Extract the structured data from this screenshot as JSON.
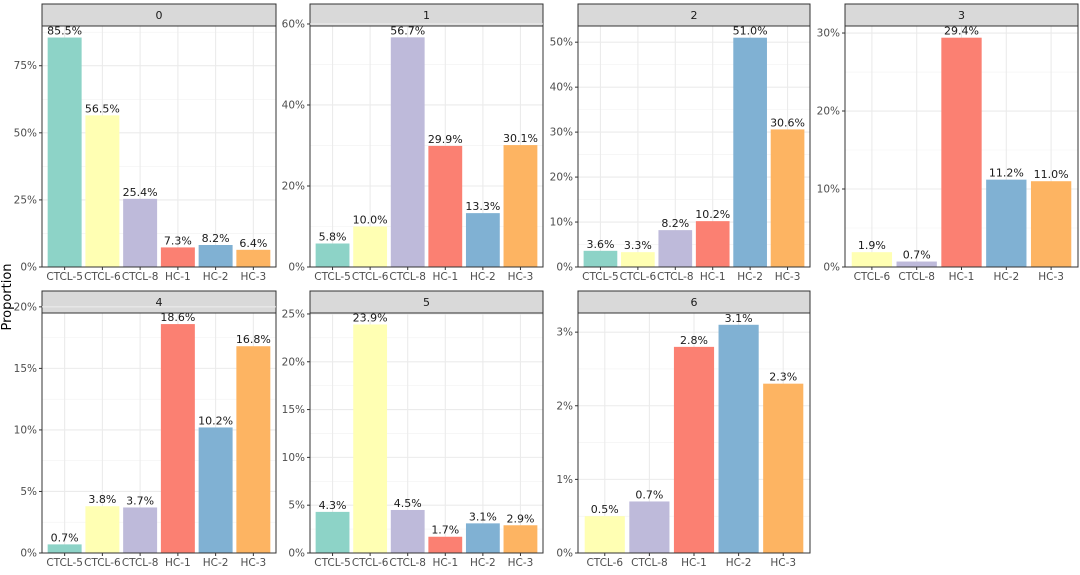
{
  "chart_data": {
    "type": "bar",
    "ylabel": "Proportion",
    "colors": {
      "CTCL-5": "#8DD3C7",
      "CTCL-6": "#FFFFB3",
      "CTCL-8": "#BEBADA",
      "HC-1": "#FB8072",
      "HC-2": "#80B1D3",
      "HC-3": "#FDB462"
    },
    "panels": [
      {
        "facet": "0",
        "categories": [
          "CTCL-5",
          "CTCL-6",
          "CTCL-8",
          "HC-1",
          "HC-2",
          "HC-3"
        ],
        "values": [
          85.5,
          56.5,
          25.4,
          7.3,
          8.2,
          6.4
        ],
        "labels": [
          "85.5%",
          "56.5%",
          "25.4%",
          "7.3%",
          "8.2%",
          "6.4%"
        ],
        "ylim": [
          0,
          89.8
        ],
        "yticks": [
          0,
          25,
          50,
          75
        ],
        "ytick_labels": [
          "0%",
          "25%",
          "50%",
          "75%"
        ]
      },
      {
        "facet": "1",
        "categories": [
          "CTCL-5",
          "CTCL-6",
          "CTCL-8",
          "HC-1",
          "HC-2",
          "HC-3"
        ],
        "values": [
          5.8,
          10.0,
          56.7,
          29.9,
          13.3,
          30.1
        ],
        "labels": [
          "5.8%",
          "10.0%",
          "56.7%",
          "29.9%",
          "13.3%",
          "30.1%"
        ],
        "ylim": [
          0,
          59.5
        ],
        "yticks": [
          0,
          20,
          40,
          60
        ],
        "ytick_labels": [
          "0%",
          "20%",
          "40%",
          "60%"
        ]
      },
      {
        "facet": "2",
        "categories": [
          "CTCL-5",
          "CTCL-6",
          "CTCL-8",
          "HC-1",
          "HC-2",
          "HC-3"
        ],
        "values": [
          3.6,
          3.3,
          8.2,
          10.2,
          51.0,
          30.6
        ],
        "labels": [
          "3.6%",
          "3.3%",
          "8.2%",
          "10.2%",
          "51.0%",
          "30.6%"
        ],
        "ylim": [
          0,
          53.6
        ],
        "yticks": [
          0,
          10,
          20,
          30,
          40,
          50
        ],
        "ytick_labels": [
          "0%",
          "10%",
          "20%",
          "30%",
          "40%",
          "50%"
        ]
      },
      {
        "facet": "3",
        "categories": [
          "CTCL-6",
          "CTCL-8",
          "HC-1",
          "HC-2",
          "HC-3"
        ],
        "values": [
          1.9,
          0.7,
          29.4,
          11.2,
          11.0
        ],
        "labels": [
          "1.9%",
          "0.7%",
          "29.4%",
          "11.2%",
          "11.0%"
        ],
        "ylim": [
          0,
          30.9
        ],
        "yticks": [
          0,
          10,
          20,
          30
        ],
        "ytick_labels": [
          "0%",
          "10%",
          "20%",
          "30%"
        ]
      },
      {
        "facet": "4",
        "categories": [
          "CTCL-5",
          "CTCL-6",
          "CTCL-8",
          "HC-1",
          "HC-2",
          "HC-3"
        ],
        "values": [
          0.7,
          3.8,
          3.7,
          18.6,
          10.2,
          16.8
        ],
        "labels": [
          "0.7%",
          "3.8%",
          "3.7%",
          "18.6%",
          "10.2%",
          "16.8%"
        ],
        "ylim": [
          0,
          19.5
        ],
        "yticks": [
          0,
          5,
          10,
          15,
          20
        ],
        "ytick_labels": [
          "0%",
          "5%",
          "10%",
          "15%",
          "20%"
        ]
      },
      {
        "facet": "5",
        "categories": [
          "CTCL-5",
          "CTCL-6",
          "CTCL-8",
          "HC-1",
          "HC-2",
          "HC-3"
        ],
        "values": [
          4.3,
          23.9,
          4.5,
          1.7,
          3.1,
          2.9
        ],
        "labels": [
          "4.3%",
          "23.9%",
          "4.5%",
          "1.7%",
          "3.1%",
          "2.9%"
        ],
        "ylim": [
          0,
          25.1
        ],
        "yticks": [
          0,
          5,
          10,
          15,
          20,
          25
        ],
        "ytick_labels": [
          "0%",
          "5%",
          "10%",
          "15%",
          "20%",
          "25%"
        ]
      },
      {
        "facet": "6",
        "categories": [
          "CTCL-6",
          "CTCL-8",
          "HC-1",
          "HC-2",
          "HC-3"
        ],
        "values": [
          0.5,
          0.7,
          2.8,
          3.1,
          2.3
        ],
        "labels": [
          "0.5%",
          "0.7%",
          "2.8%",
          "3.1%",
          "2.3%"
        ],
        "ylim": [
          0,
          3.26
        ],
        "yticks": [
          0,
          1,
          2,
          3
        ],
        "ytick_labels": [
          "0%",
          "1%",
          "2%",
          "3%"
        ]
      }
    ]
  }
}
